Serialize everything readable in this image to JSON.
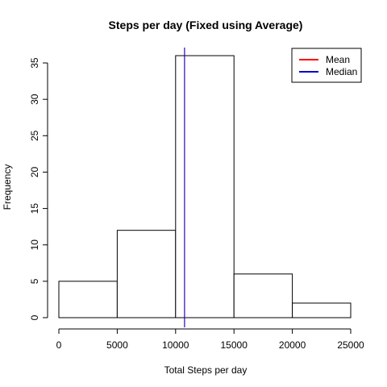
{
  "chart_data": {
    "type": "bar",
    "subtype": "histogram",
    "title": "Steps per day (Fixed using Average)",
    "xlabel": "Total Steps per day",
    "ylabel": "Frequency",
    "bins": [
      {
        "from": 0,
        "to": 5000,
        "count": 5
      },
      {
        "from": 5000,
        "to": 10000,
        "count": 12
      },
      {
        "from": 10000,
        "to": 15000,
        "count": 36
      },
      {
        "from": 15000,
        "to": 20000,
        "count": 6
      },
      {
        "from": 20000,
        "to": 25000,
        "count": 2
      }
    ],
    "xlim": [
      0,
      25000
    ],
    "ylim": [
      0,
      37
    ],
    "xticks": [
      0,
      5000,
      10000,
      15000,
      20000,
      25000
    ],
    "yticks": [
      0,
      5,
      10,
      15,
      20,
      25,
      30,
      35
    ],
    "reference_lines": [
      {
        "name": "Mean",
        "value": 10766.19,
        "color": "#ff0000"
      },
      {
        "name": "Median",
        "value": 10766.19,
        "color": "#0000cc"
      }
    ],
    "legend": {
      "position": "top-right",
      "entries": [
        {
          "label": "Mean",
          "color": "#ff0000"
        },
        {
          "label": "Median",
          "color": "#0000cc"
        }
      ]
    },
    "grid": false,
    "bar_fill": "#ffffff",
    "bar_stroke": "#000000"
  }
}
